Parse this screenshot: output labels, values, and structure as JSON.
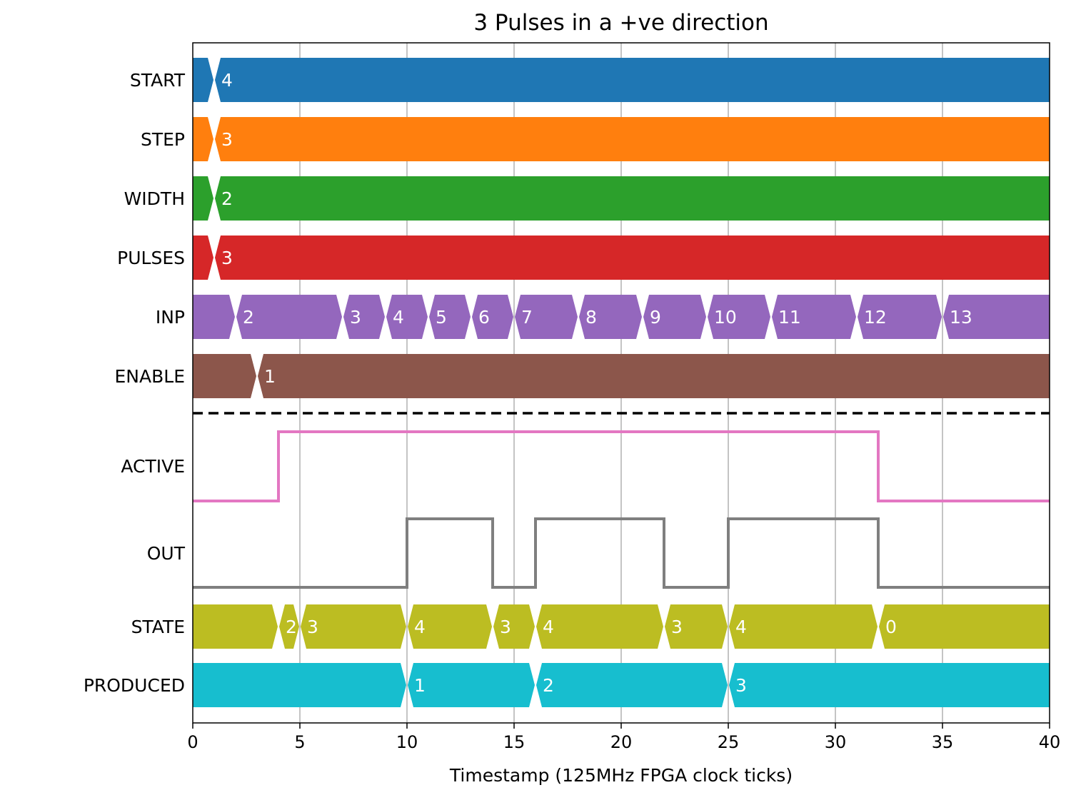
{
  "chart_data": {
    "type": "timing-diagram",
    "title": "3 Pulses in a +ve direction",
    "xlabel": "Timestamp (125MHz FPGA clock ticks)",
    "xlim": [
      0,
      40
    ],
    "xticks": [
      0,
      5,
      10,
      15,
      20,
      25,
      30,
      35,
      40
    ],
    "grid": "vertical",
    "bus_signals": [
      {
        "name": "START",
        "color": "#1f77b4",
        "transitions": [
          1
        ],
        "labels": [
          "",
          "4"
        ]
      },
      {
        "name": "STEP",
        "color": "#ff7f0e",
        "transitions": [
          1
        ],
        "labels": [
          "",
          "3"
        ]
      },
      {
        "name": "WIDTH",
        "color": "#2ca02c",
        "transitions": [
          1
        ],
        "labels": [
          "",
          "2"
        ]
      },
      {
        "name": "PULSES",
        "color": "#d62728",
        "transitions": [
          1
        ],
        "labels": [
          "",
          "3"
        ]
      },
      {
        "name": "INP",
        "color": "#9467bd",
        "transitions": [
          2,
          7,
          9,
          11,
          13,
          15,
          18,
          21,
          24,
          27,
          31,
          35
        ],
        "labels": [
          "",
          "2",
          "3",
          "4",
          "5",
          "6",
          "7",
          "8",
          "9",
          "10",
          "11",
          "12",
          "13"
        ]
      },
      {
        "name": "ENABLE",
        "color": "#8c564b",
        "transitions": [
          3
        ],
        "labels": [
          "",
          "1"
        ]
      }
    ],
    "bit_signals": [
      {
        "name": "ACTIVE",
        "color": "#e377c2",
        "points": [
          [
            0,
            0
          ],
          [
            4,
            1
          ],
          [
            32,
            0
          ],
          [
            40,
            0
          ]
        ]
      },
      {
        "name": "OUT",
        "color": "#7f7f7f",
        "points": [
          [
            0,
            0
          ],
          [
            10,
            1
          ],
          [
            14,
            0
          ],
          [
            16,
            1
          ],
          [
            22,
            0
          ],
          [
            25,
            1
          ],
          [
            32,
            0
          ],
          [
            40,
            0
          ]
        ]
      }
    ],
    "bus_signals_2": [
      {
        "name": "STATE",
        "color": "#bcbd22",
        "transitions": [
          4,
          5,
          10,
          14,
          16,
          22,
          25,
          32
        ],
        "labels": [
          "",
          "2",
          "3",
          "4",
          "3",
          "4",
          "3",
          "4",
          "0"
        ]
      },
      {
        "name": "PRODUCED",
        "color": "#17becf",
        "transitions": [
          10,
          16,
          25
        ],
        "labels": [
          "",
          "1",
          "2",
          "3"
        ]
      }
    ]
  }
}
